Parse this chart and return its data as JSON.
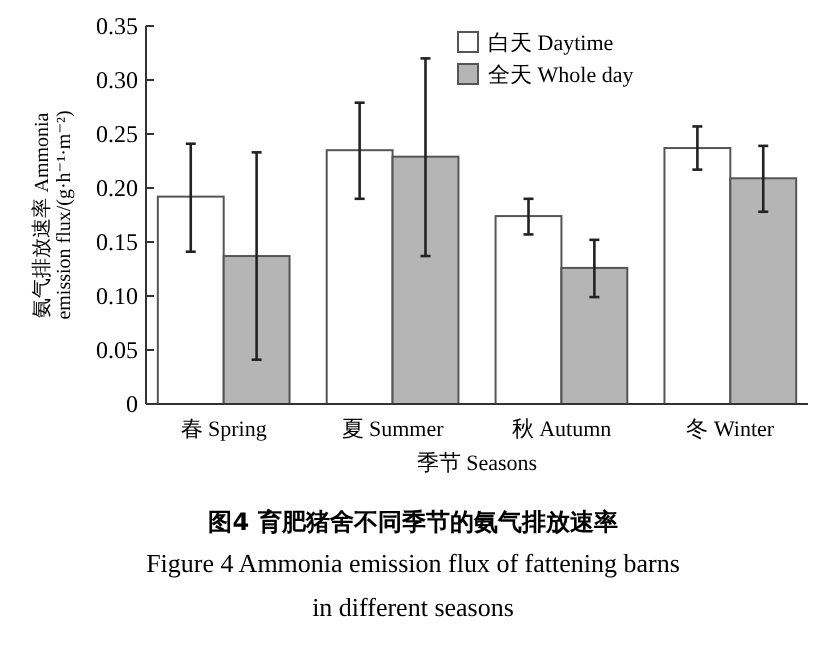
{
  "chart_data": {
    "type": "bar",
    "title": "图4 育肥猪舍不同季节的氨气排放速率",
    "subtitle": "Figure 4  Ammonia emission flux of fattening barns in different seasons",
    "xlabel": "季节 Seasons",
    "ylabel": "氨气排放速率 Ammonia\nemission flux/(g·h⁻¹·m⁻²)",
    "categories": [
      "春 Spring",
      "夏 Summer",
      "秋 Autumn",
      "冬 Winter"
    ],
    "series": [
      {
        "name": "白天 Daytime",
        "color": "#ffffff",
        "values": [
          0.192,
          0.235,
          0.174,
          0.237
        ],
        "errors": [
          [
            0.141,
            0.241
          ],
          [
            0.19,
            0.279
          ],
          [
            0.157,
            0.19
          ],
          [
            0.217,
            0.257
          ]
        ]
      },
      {
        "name": "全天 Whole day",
        "color": "#b5b5b5",
        "values": [
          0.137,
          0.229,
          0.126,
          0.209
        ],
        "errors": [
          [
            0.041,
            0.233
          ],
          [
            0.137,
            0.32
          ],
          [
            0.099,
            0.152
          ],
          [
            0.178,
            0.239
          ]
        ]
      }
    ],
    "ylim": [
      0,
      0.35
    ],
    "yticks": [
      {
        "value": 0,
        "label": "0"
      },
      {
        "value": 0.05,
        "label": "0.05"
      },
      {
        "value": 0.1,
        "label": "0.10"
      },
      {
        "value": 0.15,
        "label": "0.15"
      },
      {
        "value": 0.2,
        "label": "0.20"
      },
      {
        "value": 0.25,
        "label": "0.25"
      },
      {
        "value": 0.3,
        "label": "0.30"
      },
      {
        "value": 0.35,
        "label": "0.35"
      }
    ],
    "grid": false,
    "legend": "top right"
  }
}
